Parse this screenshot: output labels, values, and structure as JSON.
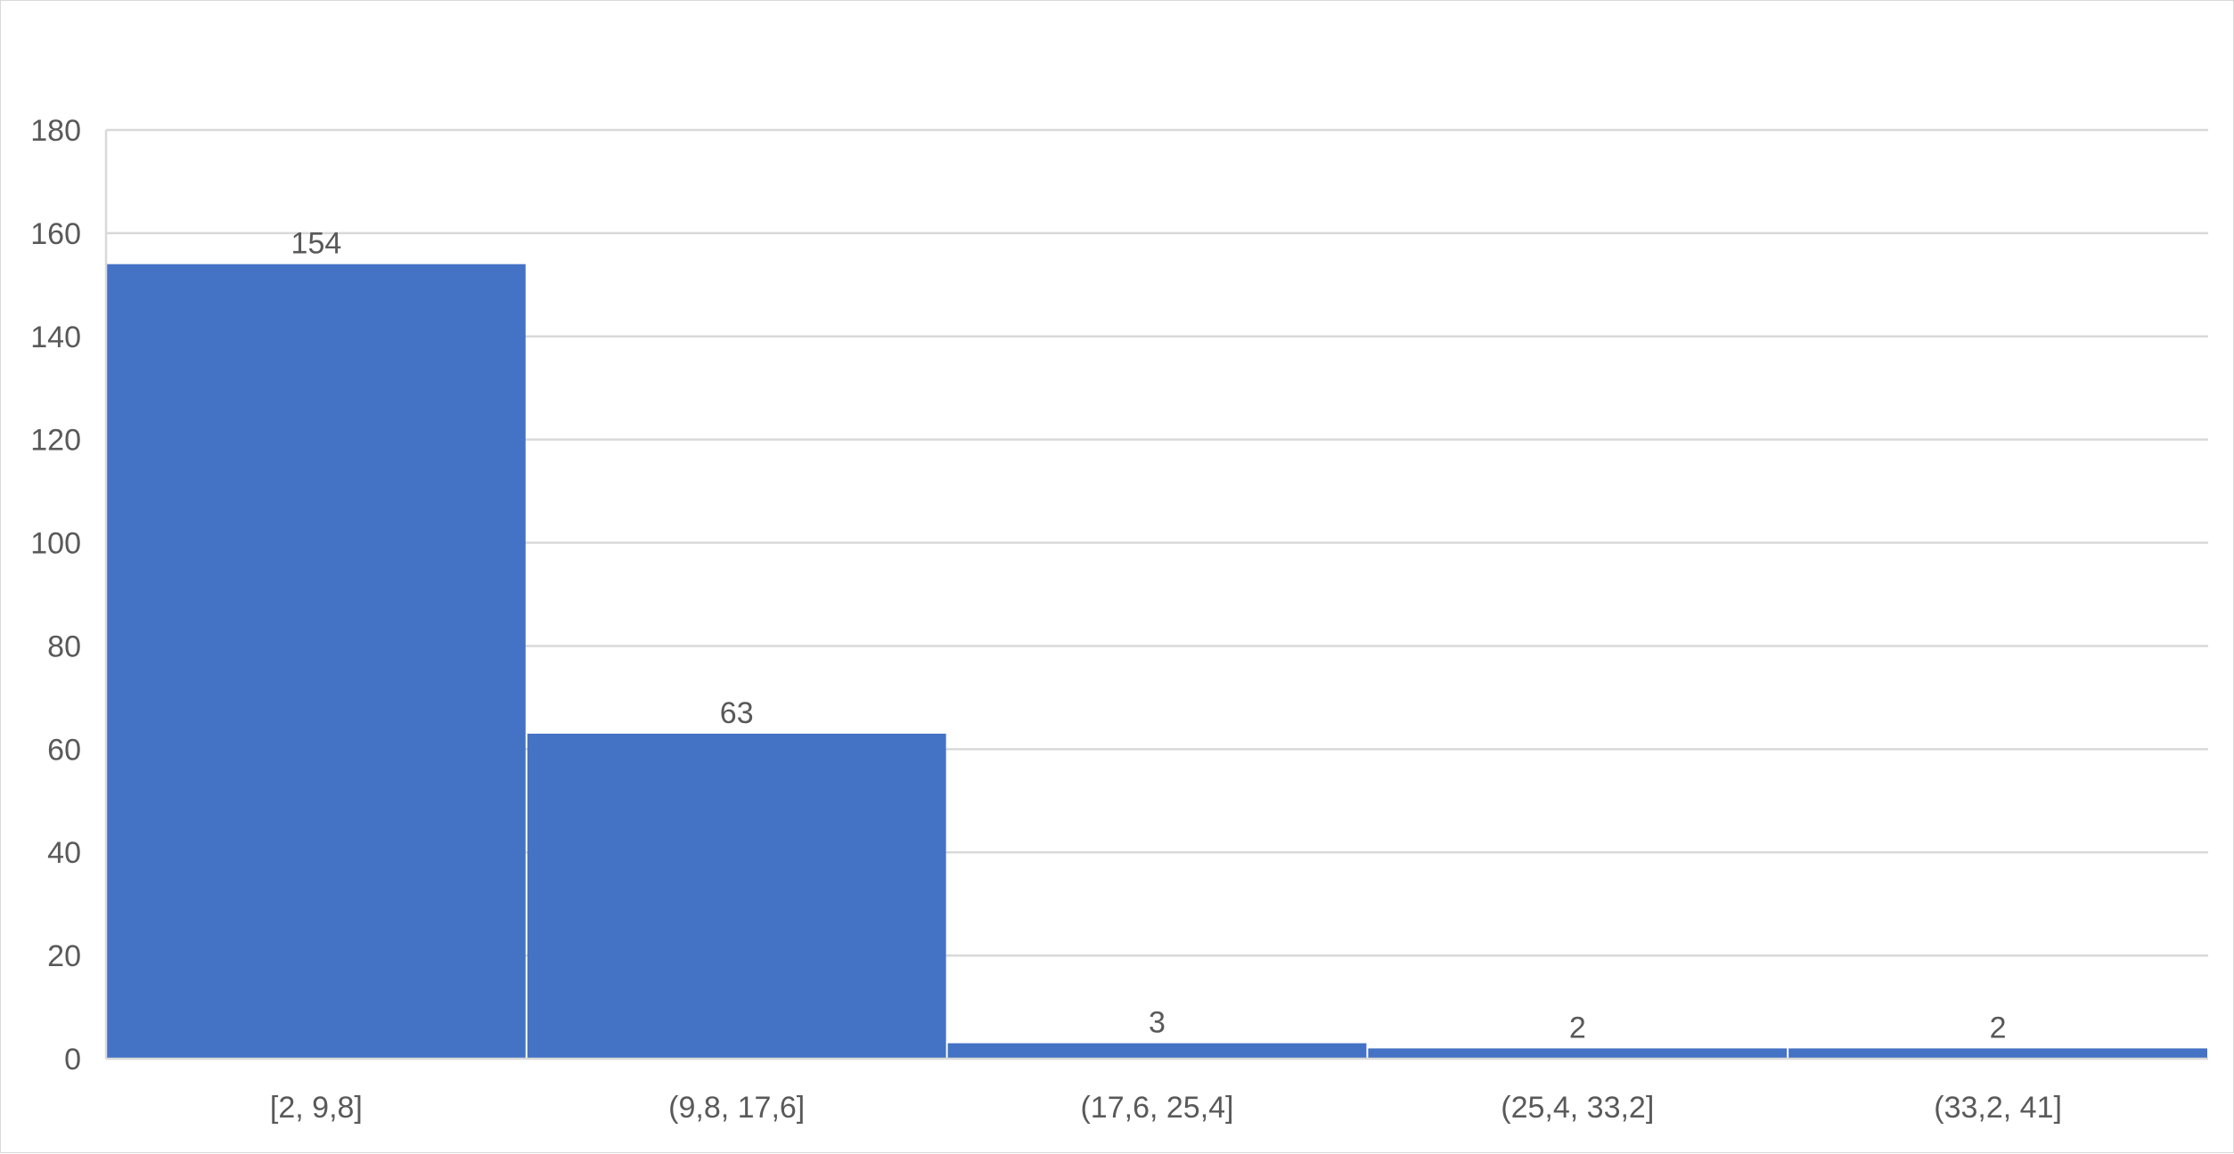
{
  "chart_data": {
    "type": "bar",
    "subtype": "histogram",
    "title": "",
    "xlabel": "",
    "ylabel": "",
    "categories": [
      "[2, 9,8]",
      "(9,8, 17,6]",
      "(17,6, 25,4]",
      "(25,4, 33,2]",
      "(33,2, 41]"
    ],
    "values": [
      154,
      63,
      3,
      2,
      2
    ],
    "data_labels": [
      "154",
      "63",
      "3",
      "2",
      "2"
    ],
    "ylim": [
      0,
      180
    ],
    "yticks": [
      0,
      20,
      40,
      60,
      80,
      100,
      120,
      140,
      160,
      180
    ],
    "ytick_labels": [
      "0",
      "20",
      "40",
      "60",
      "80",
      "100",
      "120",
      "140",
      "160",
      "180"
    ],
    "grid": true,
    "legend": "none",
    "bar_color": "#4472C4",
    "gridline_color": "#D9D9D9",
    "text_color": "#595959"
  }
}
